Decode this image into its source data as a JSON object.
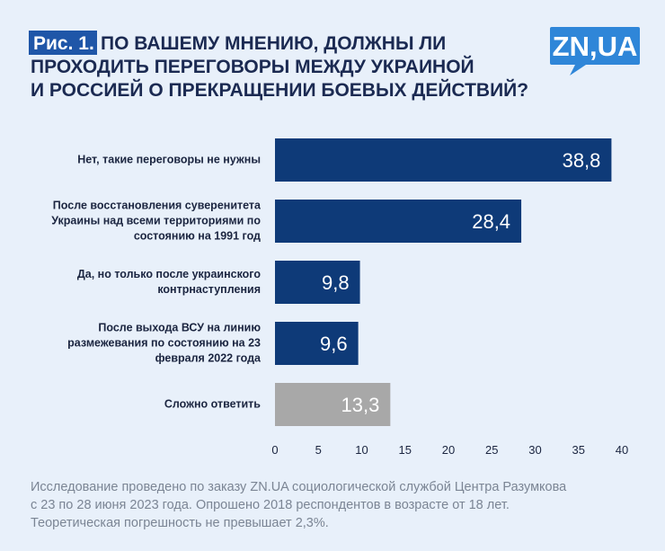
{
  "chart_data": {
    "type": "bar",
    "orientation": "horizontal",
    "figure_label": "Рис. 1.",
    "title": [
      "ПО ВАШЕМУ МНЕНИЮ, ДОЛЖНЫ ЛИ",
      "ПРОХОДИТЬ ПЕРЕГОВОРЫ МЕЖДУ УКРАИНОЙ",
      "И РОССИЕЙ О ПРЕКРАЩЕНИИ БОЕВЫХ ДЕЙСТВИЙ?"
    ],
    "logo": "ZN,UA",
    "categories": [
      "Нет, такие переговоры не нужны",
      "После восстановления суверенитета Украины над всеми территориями по состоянию на 1991 год",
      "Да, но только после украинского контрнаступления",
      "После выхода ВСУ на линию размежевания по состоянию на 23 февраля 2022 года",
      "Сложно ответить"
    ],
    "values": [
      38.8,
      28.4,
      9.8,
      9.6,
      13.3
    ],
    "value_labels": [
      "38,8",
      "28,4",
      "9,8",
      "9,6",
      "13,3"
    ],
    "colors": [
      "#0e3a78",
      "#0e3a78",
      "#0e3a78",
      "#0e3a78",
      "#a8a8a8"
    ],
    "xlim": [
      0,
      40
    ],
    "xticks": [
      0,
      5,
      10,
      15,
      20,
      25,
      30,
      35,
      40
    ],
    "grid": false,
    "footnote": [
      "Исследование проведено по заказу ZN.UA социологической службой Центра Разумкова",
      "с 23 по 28 июня 2023 года. Опрошено 2018 респондентов в возрасте от 18 лет.",
      "Теоретическая погрешность не превышает 2,3%."
    ]
  }
}
